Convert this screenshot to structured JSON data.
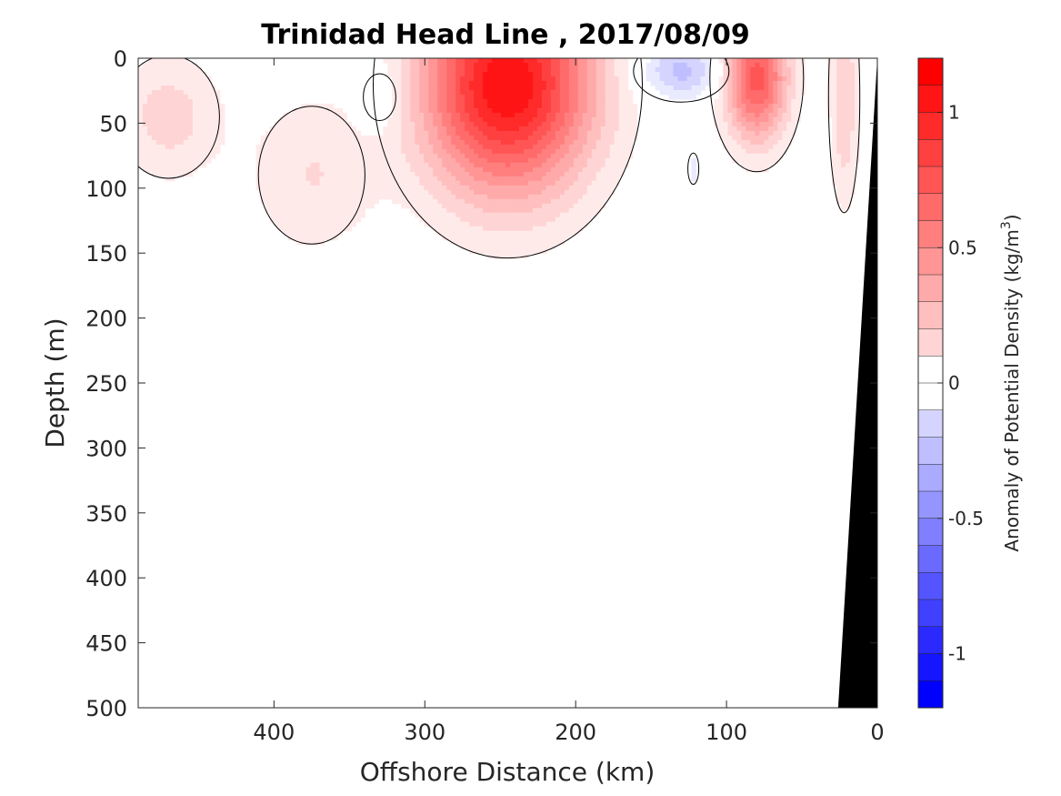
{
  "chart_data": {
    "type": "heatmap",
    "title": "Trinidad Head Line , 2017/08/09",
    "xlabel": "Offshore Distance (km)",
    "ylabel": "Depth (m)",
    "xlim": [
      490,
      0
    ],
    "ylim": [
      0,
      500
    ],
    "x_reversed": true,
    "y_reversed": true,
    "xticks": [
      "400",
      "300",
      "200",
      "100",
      "0"
    ],
    "yticks": [
      "0",
      "50",
      "100",
      "150",
      "200",
      "250",
      "300",
      "350",
      "400",
      "450",
      "500"
    ],
    "x_tick_values": [
      400,
      300,
      200,
      100,
      0
    ],
    "y_tick_values": [
      0,
      50,
      100,
      150,
      200,
      250,
      300,
      350,
      400,
      450,
      500
    ],
    "colorbar": {
      "label": "Anomaly of Potential Density (kg/m",
      "label_superscript": "3",
      "label_suffix": ")",
      "range": [
        -1.2,
        1.2
      ],
      "level_step": 0.1,
      "ticks": [
        "1",
        "0.5",
        "0",
        "-0.5",
        "-1"
      ],
      "tick_values": [
        1,
        0.5,
        0,
        -0.5,
        -1
      ],
      "positive_color": "#ff0000",
      "negative_color": "#0000ff",
      "neutral_color": "#ffffff"
    },
    "anomaly_features": [
      {
        "center_km": 245,
        "center_depth_m": 20,
        "peak": 1.2,
        "sigma_km": 40,
        "sigma_depth_m": 60
      },
      {
        "center_km": 80,
        "center_depth_m": 15,
        "peak": 0.85,
        "sigma_km": 15,
        "sigma_depth_m": 35
      },
      {
        "center_km": 470,
        "center_depth_m": 45,
        "peak": 0.25,
        "sigma_km": 25,
        "sigma_depth_m": 35
      },
      {
        "center_km": 375,
        "center_depth_m": 90,
        "peak": 0.2,
        "sigma_km": 30,
        "sigma_depth_m": 45
      },
      {
        "center_km": 22,
        "center_depth_m": 30,
        "peak": 0.3,
        "sigma_km": 7,
        "sigma_depth_m": 60
      },
      {
        "center_km": 130,
        "center_depth_m": 10,
        "peak": -0.35,
        "sigma_km": 20,
        "sigma_depth_m": 15
      },
      {
        "center_km": 330,
        "center_depth_m": 30,
        "peak": -0.15,
        "sigma_km": 12,
        "sigma_depth_m": 20
      },
      {
        "center_km": 122,
        "center_depth_m": 85,
        "peak": -0.12,
        "sigma_km": 6,
        "sigma_depth_m": 20
      },
      {
        "center_km": 38,
        "center_depth_m": 60,
        "peak": -0.1,
        "sigma_km": 4,
        "sigma_depth_m": 15
      }
    ],
    "shelf_mask": {
      "color": "#000000",
      "points_km_depth": [
        [
          0,
          0
        ],
        [
          0,
          500
        ],
        [
          26,
          500
        ]
      ]
    }
  }
}
